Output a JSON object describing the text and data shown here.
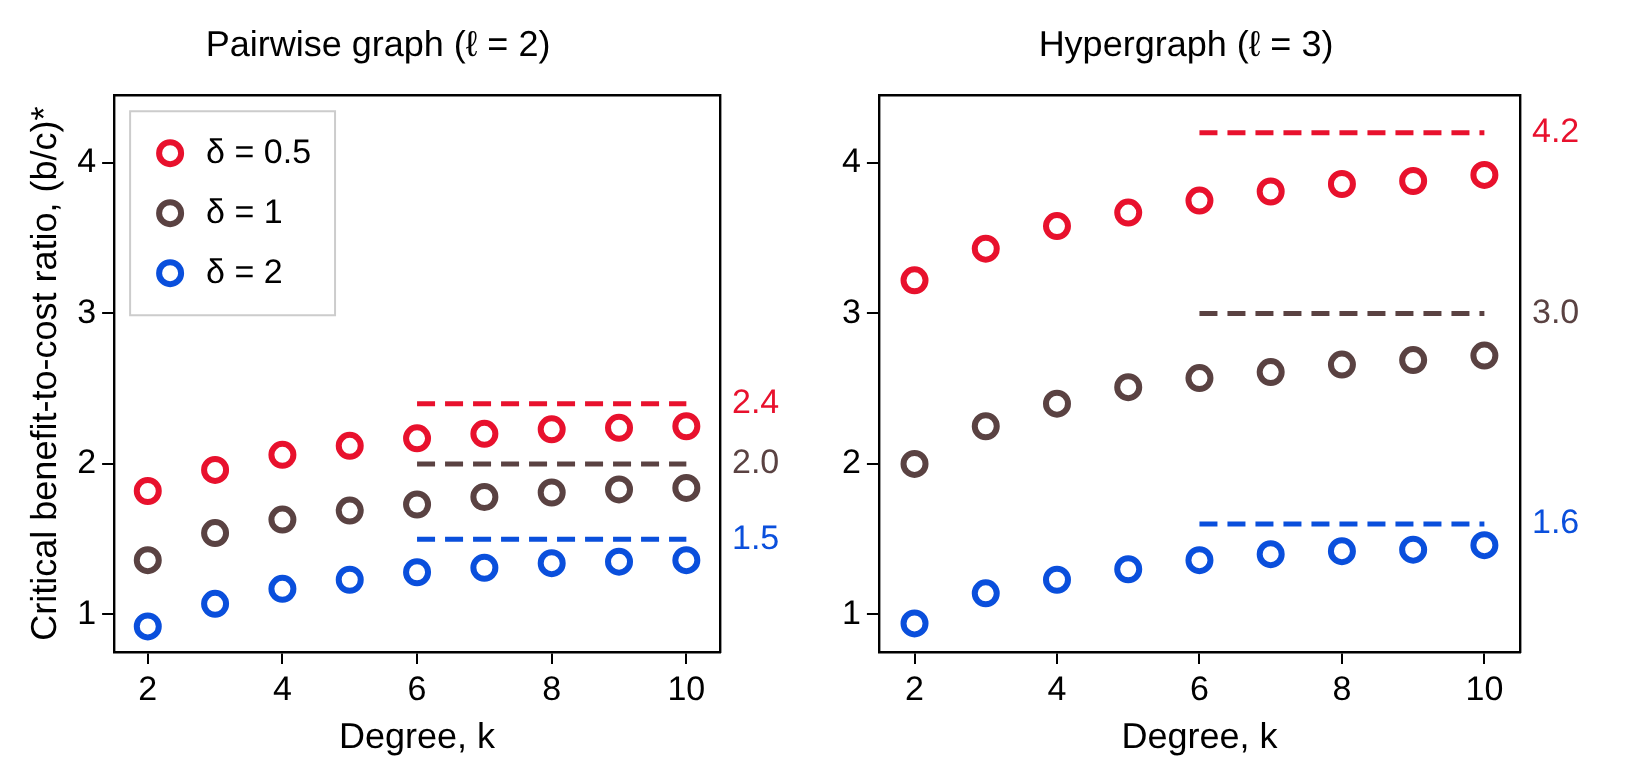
{
  "chart_data": [
    {
      "type": "scatter",
      "title": "Pairwise graph (ℓ = 2)",
      "xlabel": "Degree, k",
      "ylabel": "Critical benefit-to-cost ratio, (b/c)*",
      "x": [
        2,
        3,
        4,
        5,
        6,
        7,
        8,
        9,
        10
      ],
      "xlim": [
        1.5,
        10.5
      ],
      "xticks": [
        2,
        4,
        6,
        8,
        10
      ],
      "ylim": [
        0.75,
        4.45
      ],
      "yticks": [
        1,
        2,
        3,
        4
      ],
      "grid": false,
      "legend": "top left",
      "marker": "circle",
      "series": [
        {
          "name": "δ = 0.5",
          "color": "#e8112d",
          "values": [
            1.82,
            1.96,
            2.06,
            2.12,
            2.17,
            2.2,
            2.23,
            2.24,
            2.25
          ]
        },
        {
          "name": "δ = 1",
          "color": "#5a4242",
          "values": [
            1.36,
            1.54,
            1.63,
            1.69,
            1.73,
            1.78,
            1.81,
            1.83,
            1.84
          ]
        },
        {
          "name": "δ = 2",
          "color": "#0a4fdc",
          "values": [
            0.92,
            1.07,
            1.17,
            1.23,
            1.28,
            1.31,
            1.34,
            1.35,
            1.36
          ]
        },
        {
          "type": "line",
          "line_style": "dashed",
          "marker": "none",
          "color": "#e8112d",
          "values": [
            null,
            null,
            null,
            null,
            2.4,
            2.4,
            2.4,
            2.4,
            2.4
          ]
        },
        {
          "type": "line",
          "line_style": "dashed",
          "marker": "none",
          "color": "#5a4242",
          "values": [
            null,
            null,
            null,
            null,
            2.0,
            2.0,
            2.0,
            2.0,
            2.0
          ]
        },
        {
          "type": "line",
          "line_style": "dashed",
          "marker": "none",
          "color": "#0a4fdc",
          "values": [
            null,
            null,
            null,
            null,
            1.5,
            1.5,
            1.5,
            1.5,
            1.5
          ]
        }
      ],
      "annotations": [
        "2.4",
        "2.0",
        "1.5"
      ]
    },
    {
      "type": "scatter",
      "title": "Hypergraph (ℓ = 3)",
      "xlabel": "Degree, k",
      "x": [
        2,
        3,
        4,
        5,
        6,
        7,
        8,
        9,
        10
      ],
      "xlim": [
        1.5,
        10.5
      ],
      "xticks": [
        2,
        4,
        6,
        8,
        10
      ],
      "ylim": [
        0.75,
        4.45
      ],
      "yticks": [
        1,
        2,
        3,
        4
      ],
      "grid": false,
      "legend": false,
      "marker": "circle",
      "series": [
        {
          "color": "#e8112d",
          "values": [
            3.22,
            3.43,
            3.58,
            3.67,
            3.75,
            3.81,
            3.86,
            3.88,
            3.92
          ]
        },
        {
          "color": "#5a4242",
          "values": [
            2.0,
            2.25,
            2.4,
            2.51,
            2.57,
            2.61,
            2.66,
            2.69,
            2.72
          ]
        },
        {
          "color": "#0a4fdc",
          "values": [
            0.94,
            1.14,
            1.23,
            1.3,
            1.36,
            1.4,
            1.42,
            1.43,
            1.46
          ]
        },
        {
          "type": "line",
          "line_style": "dashed",
          "marker": "none",
          "color": "#e8112d",
          "values": [
            null,
            null,
            null,
            null,
            4.2,
            4.2,
            4.2,
            4.2,
            4.2
          ]
        },
        {
          "type": "line",
          "line_style": "dashed",
          "marker": "none",
          "color": "#5a4242",
          "values": [
            null,
            null,
            null,
            null,
            3.0,
            3.0,
            3.0,
            3.0,
            3.0
          ]
        },
        {
          "type": "line",
          "line_style": "dashed",
          "marker": "none",
          "color": "#0a4fdc",
          "values": [
            null,
            null,
            null,
            null,
            1.6,
            1.6,
            1.6,
            1.6,
            1.6
          ]
        }
      ],
      "annotations": [
        "4.2",
        "3.0",
        "1.6"
      ]
    }
  ]
}
